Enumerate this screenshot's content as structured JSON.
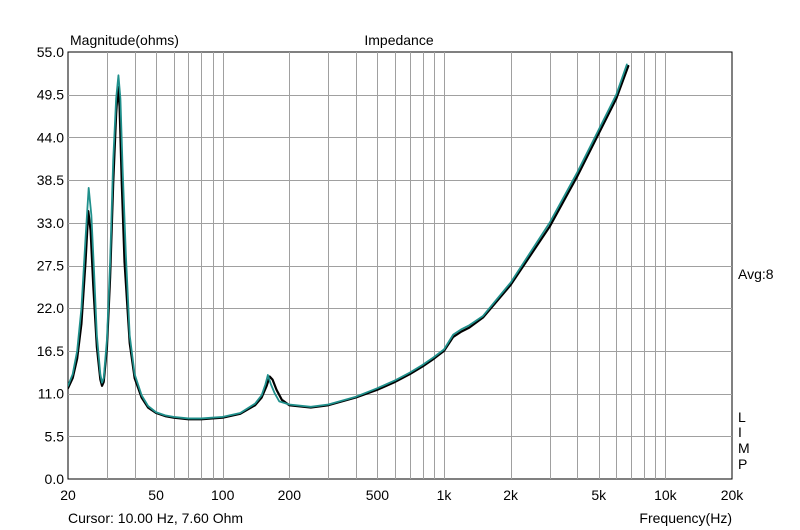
{
  "chart_data": {
    "type": "line",
    "title": "Impedance",
    "ylabel": "Magnitude(ohms)",
    "xlabel": "Frequency(Hz)",
    "xscale": "log",
    "xlim": [
      20,
      20000
    ],
    "ylim": [
      0,
      55
    ],
    "grid": true,
    "x_ticks": [
      20,
      50,
      100,
      200,
      500,
      1000,
      2000,
      5000,
      10000,
      20000
    ],
    "x_tick_labels": [
      "20",
      "50",
      "100",
      "200",
      "500",
      "1k",
      "2k",
      "5k",
      "10k",
      "20k"
    ],
    "y_ticks": [
      0,
      5.5,
      11,
      16.5,
      22,
      27.5,
      33,
      38.5,
      44,
      49.5,
      55
    ],
    "y_tick_labels": [
      "0.0",
      "5.5",
      "11.0",
      "16.5",
      "22.0",
      "27.5",
      "33.0",
      "38.5",
      "44.0",
      "49.5",
      "55.0"
    ],
    "avg_label": "Avg:8",
    "side_letters": [
      "L",
      "I",
      "M",
      "P"
    ],
    "cursor_text": "Cursor: 10.00 Hz, 7.60 Ohm",
    "series": [
      {
        "color": "#000000",
        "x": [
          20,
          21,
          22,
          23,
          24,
          24.7,
          25.3,
          26,
          27,
          28,
          28.5,
          29,
          30,
          31,
          32,
          33,
          33.6,
          34.2,
          35,
          36,
          38,
          40,
          43,
          46,
          50,
          55,
          60,
          70,
          80,
          100,
          120,
          140,
          150,
          158,
          163,
          168,
          175,
          185,
          200,
          250,
          300,
          400,
          500,
          600,
          700,
          800,
          900,
          1000,
          1100,
          1200,
          1300,
          1500,
          2000,
          3000,
          4000,
          5000,
          6000,
          6800
        ],
        "values": [
          11.7,
          13,
          15.5,
          20,
          28,
          34.5,
          32,
          25,
          17,
          12.8,
          12,
          12.5,
          17,
          26,
          38,
          47,
          50.5,
          48,
          38,
          28,
          17.5,
          13,
          10.5,
          9.2,
          8.5,
          8.1,
          7.9,
          7.7,
          7.7,
          7.9,
          8.4,
          9.5,
          10.5,
          12,
          13.2,
          12.8,
          11.5,
          10.2,
          9.5,
          9.2,
          9.5,
          10.5,
          11.5,
          12.5,
          13.5,
          14.5,
          15.5,
          16.5,
          18.3,
          19,
          19.5,
          20.8,
          25,
          32.5,
          39,
          44.5,
          49,
          53.2
        ]
      },
      {
        "color": "#20908c",
        "x": [
          20,
          21,
          22,
          23,
          24,
          24.8,
          25.5,
          26.2,
          27,
          28,
          28.5,
          29,
          30,
          31,
          32,
          33,
          33.8,
          34.5,
          35.3,
          36.5,
          38,
          40,
          43,
          46,
          50,
          55,
          60,
          70,
          80,
          100,
          120,
          140,
          150,
          156,
          160,
          165,
          172,
          180,
          200,
          250,
          300,
          400,
          500,
          600,
          700,
          800,
          900,
          1000,
          1100,
          1200,
          1300,
          1500,
          2000,
          3000,
          4000,
          5000,
          6000,
          6700
        ],
        "values": [
          12,
          13.5,
          16.5,
          22,
          31,
          37.5,
          34,
          27,
          18.5,
          13.5,
          12.4,
          13,
          18,
          28,
          41,
          49,
          52,
          49,
          40,
          29,
          18.5,
          13.5,
          10.8,
          9.4,
          8.6,
          8.2,
          8,
          7.8,
          7.8,
          8,
          8.5,
          9.7,
          10.8,
          12.2,
          13.4,
          12.2,
          11,
          10,
          9.6,
          9.3,
          9.6,
          10.6,
          11.7,
          12.7,
          13.7,
          14.7,
          15.7,
          16.7,
          18.6,
          19.3,
          19.8,
          21,
          25.3,
          33,
          39.5,
          45,
          49.5,
          53.4
        ]
      }
    ]
  }
}
